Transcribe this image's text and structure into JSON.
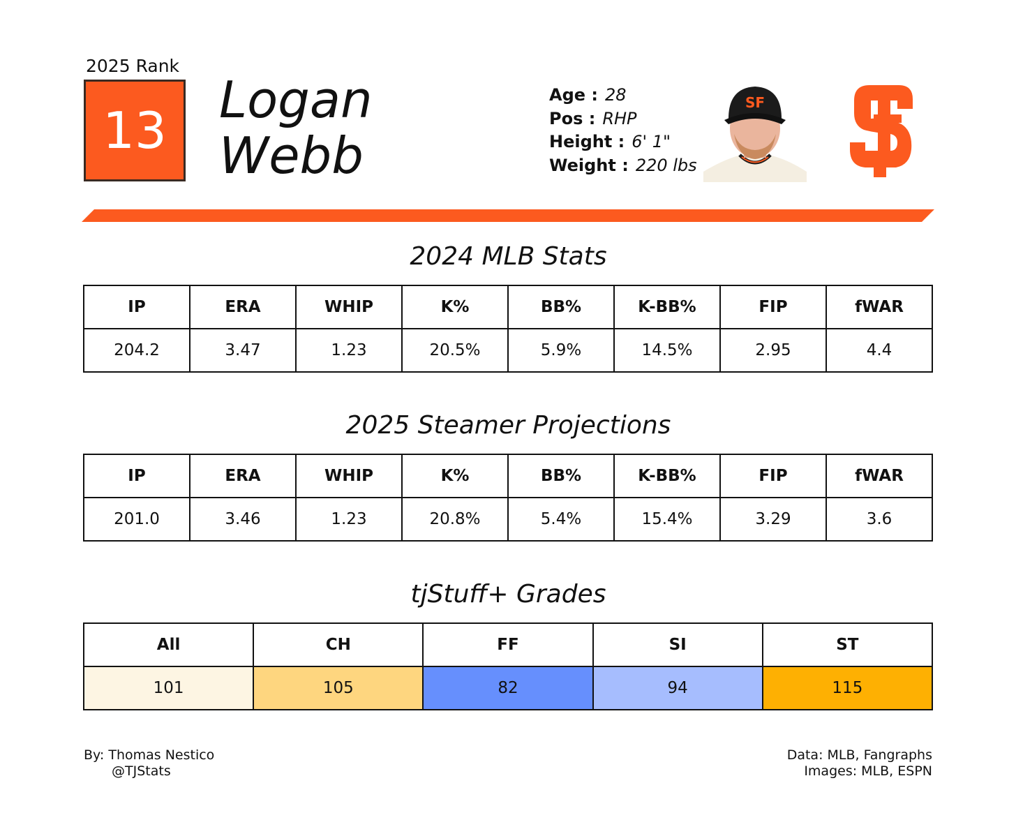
{
  "header": {
    "rank_label": "2025 Rank",
    "rank": "13",
    "first_name": "Logan",
    "last_name": "Webb"
  },
  "bio": {
    "age_label": "Age :",
    "age": "28",
    "pos_label": "Pos :",
    "pos": "RHP",
    "height_label": "Height :",
    "height": "6' 1\"",
    "weight_label": "Weight :",
    "weight": "220 lbs"
  },
  "colors": {
    "brand": "#fc5a1f",
    "grade_all": "#fdf5e3",
    "grade_ch": "#fed67f",
    "grade_ff": "#668ffd",
    "grade_si": "#a6bdfe",
    "grade_st": "#feb002"
  },
  "stats_2024": {
    "title": "2024 MLB Stats",
    "headers": [
      "IP",
      "ERA",
      "WHIP",
      "K%",
      "BB%",
      "K-BB%",
      "FIP",
      "fWAR"
    ],
    "values": [
      "204.2",
      "3.47",
      "1.23",
      "20.5%",
      "5.9%",
      "14.5%",
      "2.95",
      "4.4"
    ]
  },
  "projections_2025": {
    "title": "2025 Steamer Projections",
    "headers": [
      "IP",
      "ERA",
      "WHIP",
      "K%",
      "BB%",
      "K-BB%",
      "FIP",
      "fWAR"
    ],
    "values": [
      "201.0",
      "3.46",
      "1.23",
      "20.8%",
      "5.4%",
      "15.4%",
      "3.29",
      "3.6"
    ]
  },
  "grades": {
    "title": "tjStuff+ Grades",
    "headers": [
      "All",
      "CH",
      "FF",
      "SI",
      "ST"
    ],
    "values": [
      "101",
      "105",
      "82",
      "94",
      "115"
    ]
  },
  "footer": {
    "author": "By: Thomas Nestico",
    "handle": "@TJStats",
    "data_source": "Data: MLB, Fangraphs",
    "image_source": "Images: MLB, ESPN"
  }
}
